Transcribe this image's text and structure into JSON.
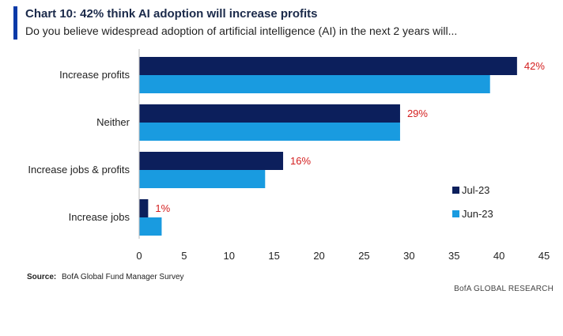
{
  "header": {
    "title": "Chart 10: 42% think AI adoption will increase profits",
    "subtitle": "Do you believe widespread adoption of artificial intelligence (AI) in the next 2 years will..."
  },
  "footer": {
    "source_label": "Source:",
    "source_text": "BofA Global Fund Manager Survey",
    "brand": "BofA GLOBAL RESEARCH"
  },
  "chart_data": {
    "type": "bar",
    "orientation": "horizontal",
    "categories": [
      "Increase profits",
      "Neither",
      "Increase jobs & profits",
      "Increase jobs"
    ],
    "series": [
      {
        "name": "Jul-23",
        "values": [
          42,
          29,
          16,
          1
        ],
        "color": "#0c1f5c"
      },
      {
        "name": "Jun-23",
        "values": [
          39,
          29,
          14,
          2.5
        ],
        "color": "#199be0"
      }
    ],
    "data_labels": [
      "42%",
      "29%",
      "16%",
      "1%"
    ],
    "xlim": [
      0,
      45
    ],
    "xticks": [
      0,
      5,
      10,
      15,
      20,
      25,
      30,
      35,
      40,
      45
    ],
    "title": "",
    "xlabel": "",
    "ylabel": "",
    "legend": "right",
    "grid": false
  }
}
